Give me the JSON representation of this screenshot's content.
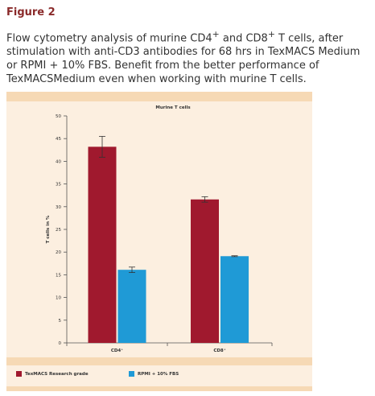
{
  "figure": {
    "title": "Figure 2",
    "caption_line1": "Flow cytometry analysis of murine CD4",
    "caption_sup1": "+",
    "caption_line1b": " and CD8",
    "caption_sup2": "+",
    "caption_line1c": " T cells, after",
    "caption_rest": "stimulation with anti-CD3 antibodies for 68 hrs in TexMACS Medium or RPMI + 10% FBS. Benefit from the better performance of TexMACSMedium even when working with murine T cells."
  },
  "colors": {
    "texmacs": "#a0192e",
    "rpmi": "#1f9ad6",
    "panel_outer": "#f6d9b5",
    "panel_inner": "#fcefe0",
    "title_red": "#8a2a2a"
  },
  "chart_data": {
    "type": "bar",
    "title": "Murine T cells",
    "ylabel": "T cells in %",
    "xlabel": "",
    "ylim": [
      0,
      50
    ],
    "yticks": [
      0,
      5,
      10,
      15,
      20,
      25,
      30,
      35,
      40,
      45,
      50
    ],
    "categories": [
      "CD4+",
      "CD8+"
    ],
    "category_labels": [
      "CD4⁺",
      "CD8⁺"
    ],
    "series": [
      {
        "name": "TexMACS Research grade",
        "values": [
          43.2,
          31.6
        ],
        "errors": [
          2.3,
          0.6
        ]
      },
      {
        "name": "RPMI + 10% FBS",
        "values": [
          16.1,
          19.1
        ],
        "errors": [
          0.6,
          0.1
        ]
      }
    ],
    "legend_position": "bottom"
  }
}
